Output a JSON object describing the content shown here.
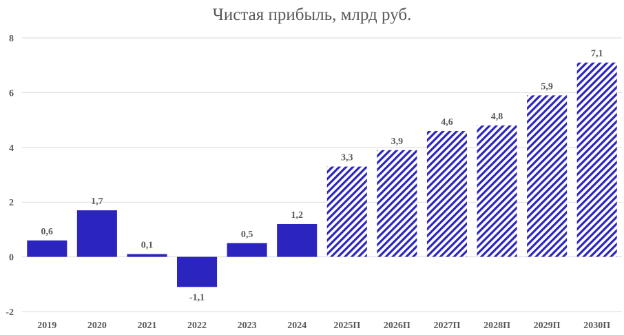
{
  "chart_data": {
    "type": "bar",
    "title": "Чистая прибыль, млрд руб.",
    "xlabel": "",
    "ylabel": "",
    "ylim": [
      -2,
      8
    ],
    "yticks": [
      -2,
      0,
      2,
      4,
      6,
      8
    ],
    "grid": true,
    "legend": null,
    "categories": [
      "2019",
      "2020",
      "2021",
      "2022",
      "2023",
      "2024",
      "2025П",
      "2026П",
      "2027П",
      "2028П",
      "2029П",
      "2030П"
    ],
    "values": [
      0.6,
      1.7,
      0.1,
      -1.1,
      0.5,
      1.2,
      3.3,
      3.9,
      4.6,
      4.8,
      5.9,
      7.1
    ],
    "value_labels": [
      "0,6",
      "1,7",
      "0,1",
      "-1,1",
      "0,5",
      "1,2",
      "3,3",
      "3,9",
      "4,6",
      "4,8",
      "5,9",
      "7,1"
    ],
    "forecast": [
      false,
      false,
      false,
      false,
      false,
      false,
      true,
      true,
      true,
      true,
      true,
      true
    ],
    "colors": {
      "bar": "#2b24bf",
      "grid": "#d9d9d9",
      "text": "#595959"
    }
  }
}
